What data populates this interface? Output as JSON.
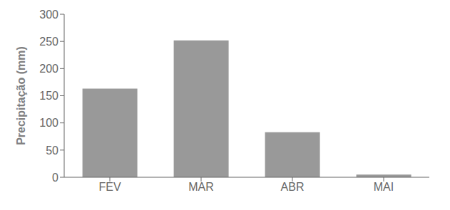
{
  "chart_data": {
    "type": "bar",
    "categories": [
      "FEV",
      "MAR",
      "ABR",
      "MAI"
    ],
    "values": [
      163,
      252,
      83,
      5
    ],
    "color": "#999999",
    "ylabel": "Precipitação (mm)",
    "ylim": [
      0,
      300
    ],
    "yticks": [
      0,
      50,
      100,
      150,
      200,
      250,
      300
    ],
    "grid": false
  }
}
